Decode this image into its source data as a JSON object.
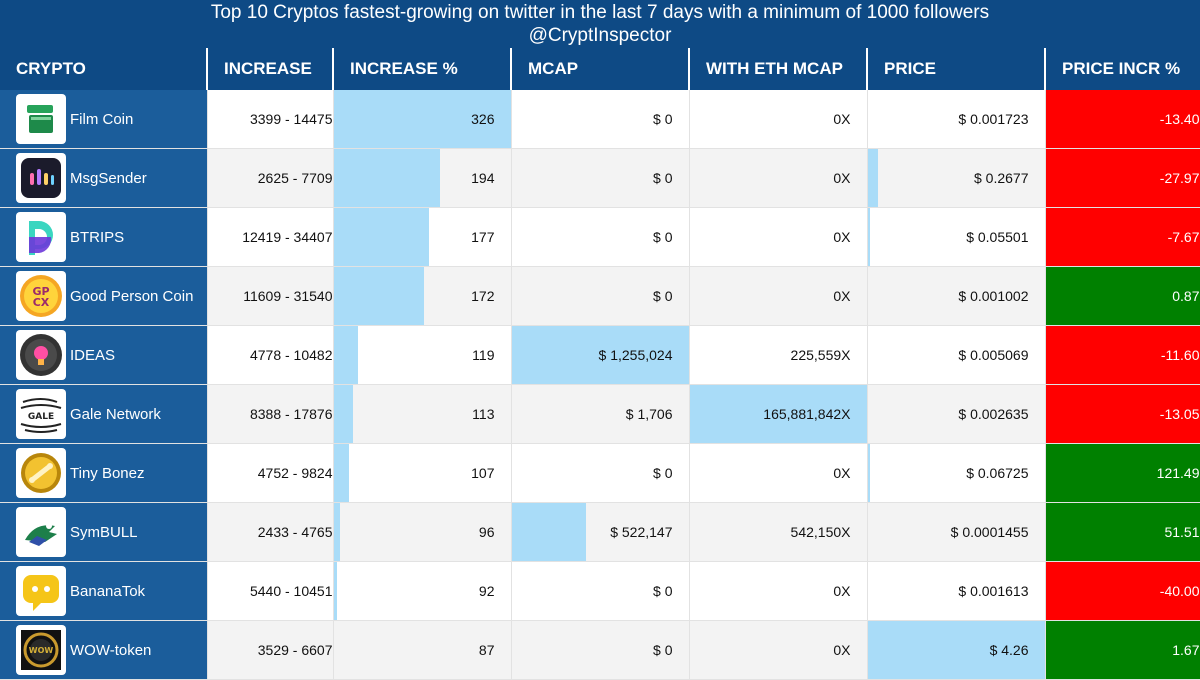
{
  "header": {
    "title": "Top 10 Cryptos fastest-growing on twitter in the last 7 days with a minimum of 1000 followers",
    "subtitle": "@CryptInspector"
  },
  "columns": [
    "CRYPTO",
    "INCREASE",
    "INCREASE %",
    "MCAP",
    "WITH ETH MCAP",
    "PRICE",
    "PRICE INCR %"
  ],
  "colors": {
    "header_bg": "#0e4a85",
    "crypto_cell_bg": "#1b5d9b",
    "bar_fill": "#a9dcf8",
    "negative": "#ff0000",
    "positive": "#008000"
  },
  "rows": [
    {
      "name": "Film Coin",
      "logo": "film-coin-logo",
      "increase": "3399 - 14475",
      "pct": "326",
      "mcap": "$ 0",
      "eth": "0X",
      "price": "$ 0.001723",
      "change": "-13.40",
      "pct_level": 1.0,
      "mcap_level": 0,
      "eth_level": 0,
      "price_level": 0.0
    },
    {
      "name": "MsgSender",
      "logo": "msgsender-logo",
      "increase": "2625 - 7709",
      "pct": "194",
      "mcap": "$ 0",
      "eth": "0X",
      "price": "$ 0.2677",
      "change": "-27.97",
      "pct_level": 0.6,
      "mcap_level": 0,
      "eth_level": 0,
      "price_level": 0.06
    },
    {
      "name": "BTRIPS",
      "logo": "btrips-logo",
      "increase": "12419 - 34407",
      "pct": "177",
      "mcap": "$ 0",
      "eth": "0X",
      "price": "$ 0.05501",
      "change": "-7.67",
      "pct_level": 0.54,
      "mcap_level": 0,
      "eth_level": 0,
      "price_level": 0.013
    },
    {
      "name": "Good Person Coin",
      "logo": "good-person-coin-logo",
      "increase": "11609 - 31540",
      "pct": "172",
      "mcap": "$ 0",
      "eth": "0X",
      "price": "$ 0.001002",
      "change": "0.87",
      "pct_level": 0.51,
      "mcap_level": 0,
      "eth_level": 0,
      "price_level": 0.0
    },
    {
      "name": "IDEAS",
      "logo": "ideas-logo",
      "increase": "4778 - 10482",
      "pct": "119",
      "mcap": "$ 1,255,024",
      "eth": "225,559X",
      "price": "$ 0.005069",
      "change": "-11.60",
      "pct_level": 0.14,
      "mcap_level": 1.0,
      "eth_level": 0.0,
      "price_level": 0.0
    },
    {
      "name": "Gale Network",
      "logo": "gale-network-logo",
      "increase": "8388 - 17876",
      "pct": "113",
      "mcap": "$ 1,706",
      "eth": "165,881,842X",
      "price": "$ 0.002635",
      "change": "-13.05",
      "pct_level": 0.11,
      "mcap_level": 0.0,
      "eth_level": 1.0,
      "price_level": 0.0
    },
    {
      "name": "Tiny Bonez",
      "logo": "tiny-bonez-logo",
      "increase": "4752 - 9824",
      "pct": "107",
      "mcap": "$ 0",
      "eth": "0X",
      "price": "$ 0.06725",
      "change": "121.49",
      "pct_level": 0.09,
      "mcap_level": 0,
      "eth_level": 0,
      "price_level": 0.016
    },
    {
      "name": "SymBULL",
      "logo": "symbull-logo",
      "increase": "2433 - 4765",
      "pct": "96",
      "mcap": "$ 522,147",
      "eth": "542,150X",
      "price": "$ 0.0001455",
      "change": "51.51",
      "pct_level": 0.035,
      "mcap_level": 0.42,
      "eth_level": 0.0,
      "price_level": 0.0
    },
    {
      "name": "BananaTok",
      "logo": "bananatok-logo",
      "increase": "5440 - 10451",
      "pct": "92",
      "mcap": "$ 0",
      "eth": "0X",
      "price": "$ 0.001613",
      "change": "-40.00",
      "pct_level": 0.02,
      "mcap_level": 0,
      "eth_level": 0,
      "price_level": 0.0
    },
    {
      "name": "WOW-token",
      "logo": "wow-token-logo",
      "increase": "3529 - 6607",
      "pct": "87",
      "mcap": "$ 0",
      "eth": "0X",
      "price": "$ 4.26",
      "change": "1.67",
      "pct_level": 0.0,
      "mcap_level": 0,
      "eth_level": 0,
      "price_level": 1.0
    }
  ]
}
